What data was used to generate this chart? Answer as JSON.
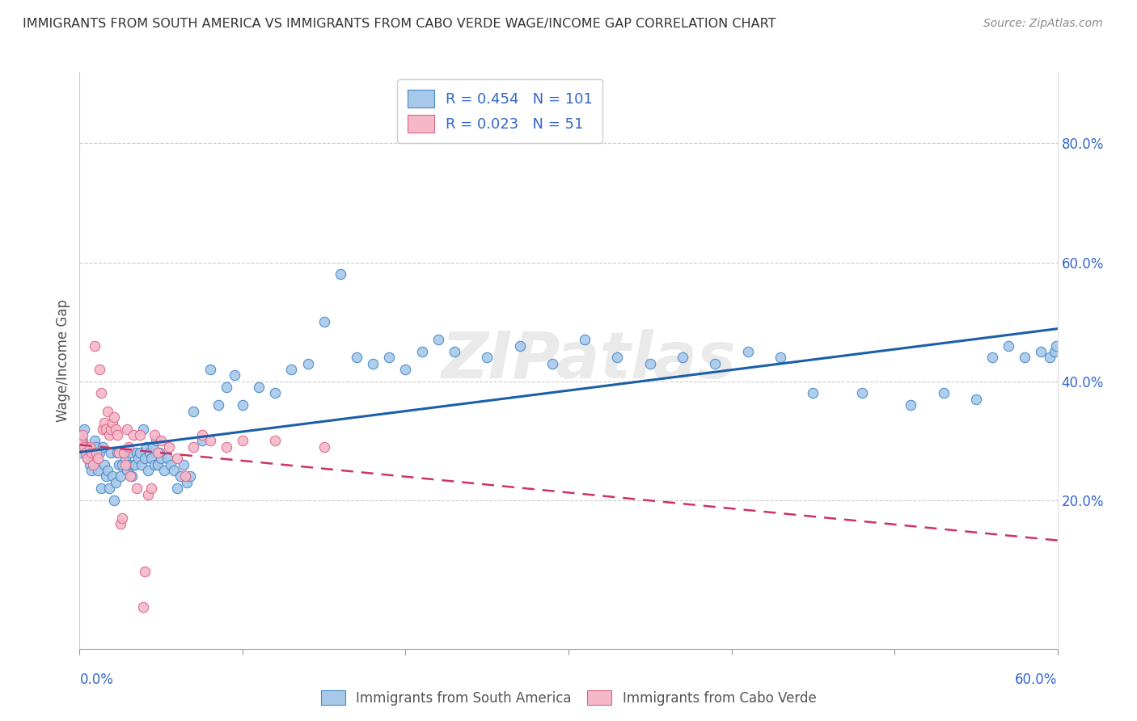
{
  "title": "IMMIGRANTS FROM SOUTH AMERICA VS IMMIGRANTS FROM CABO VERDE WAGE/INCOME GAP CORRELATION CHART",
  "source": "Source: ZipAtlas.com",
  "ylabel": "Wage/Income Gap",
  "right_yticks": [
    0.2,
    0.4,
    0.6,
    0.8
  ],
  "right_yticklabels": [
    "20.0%",
    "40.0%",
    "60.0%",
    "80.0%"
  ],
  "watermark": "ZIPatlas",
  "series1": {
    "label": "Immigrants from South America",
    "R": 0.454,
    "N": 101,
    "color": "#a8c8e8",
    "edge_color": "#4488cc",
    "line_color": "#1a5fa8",
    "x": [
      0.001,
      0.002,
      0.003,
      0.004,
      0.005,
      0.006,
      0.007,
      0.008,
      0.009,
      0.01,
      0.011,
      0.012,
      0.013,
      0.014,
      0.015,
      0.016,
      0.017,
      0.018,
      0.019,
      0.02,
      0.021,
      0.022,
      0.023,
      0.024,
      0.025,
      0.026,
      0.027,
      0.028,
      0.029,
      0.03,
      0.031,
      0.032,
      0.033,
      0.034,
      0.035,
      0.036,
      0.037,
      0.038,
      0.039,
      0.04,
      0.041,
      0.042,
      0.043,
      0.044,
      0.045,
      0.046,
      0.047,
      0.048,
      0.049,
      0.05,
      0.052,
      0.054,
      0.056,
      0.058,
      0.06,
      0.062,
      0.064,
      0.066,
      0.068,
      0.07,
      0.075,
      0.08,
      0.085,
      0.09,
      0.095,
      0.1,
      0.11,
      0.12,
      0.13,
      0.14,
      0.15,
      0.16,
      0.17,
      0.18,
      0.19,
      0.2,
      0.21,
      0.22,
      0.23,
      0.25,
      0.27,
      0.29,
      0.31,
      0.33,
      0.35,
      0.37,
      0.39,
      0.41,
      0.43,
      0.45,
      0.48,
      0.51,
      0.53,
      0.55,
      0.56,
      0.57,
      0.58,
      0.59,
      0.595,
      0.598,
      0.599
    ],
    "y": [
      0.28,
      0.3,
      0.32,
      0.29,
      0.27,
      0.26,
      0.25,
      0.28,
      0.3,
      0.29,
      0.25,
      0.28,
      0.22,
      0.29,
      0.26,
      0.24,
      0.25,
      0.22,
      0.28,
      0.24,
      0.2,
      0.23,
      0.28,
      0.26,
      0.24,
      0.26,
      0.28,
      0.27,
      0.25,
      0.26,
      0.28,
      0.24,
      0.26,
      0.26,
      0.28,
      0.27,
      0.28,
      0.26,
      0.32,
      0.27,
      0.29,
      0.25,
      0.28,
      0.27,
      0.29,
      0.26,
      0.3,
      0.26,
      0.28,
      0.27,
      0.25,
      0.27,
      0.26,
      0.25,
      0.22,
      0.24,
      0.26,
      0.23,
      0.24,
      0.35,
      0.3,
      0.42,
      0.36,
      0.39,
      0.41,
      0.36,
      0.39,
      0.38,
      0.42,
      0.43,
      0.5,
      0.58,
      0.44,
      0.43,
      0.44,
      0.42,
      0.45,
      0.47,
      0.45,
      0.44,
      0.46,
      0.43,
      0.47,
      0.44,
      0.43,
      0.44,
      0.43,
      0.45,
      0.44,
      0.38,
      0.38,
      0.36,
      0.38,
      0.37,
      0.44,
      0.46,
      0.44,
      0.45,
      0.44,
      0.45,
      0.46
    ]
  },
  "series2": {
    "label": "Immigrants from Cabo Verde",
    "R": 0.023,
    "N": 51,
    "color": "#f4b8c8",
    "edge_color": "#dd6688",
    "line_color": "#cc3366",
    "x": [
      0.001,
      0.002,
      0.003,
      0.004,
      0.005,
      0.006,
      0.007,
      0.008,
      0.009,
      0.01,
      0.011,
      0.012,
      0.013,
      0.014,
      0.015,
      0.016,
      0.017,
      0.018,
      0.019,
      0.02,
      0.021,
      0.022,
      0.023,
      0.024,
      0.025,
      0.026,
      0.027,
      0.028,
      0.029,
      0.03,
      0.031,
      0.033,
      0.035,
      0.037,
      0.039,
      0.04,
      0.042,
      0.044,
      0.046,
      0.048,
      0.05,
      0.055,
      0.06,
      0.065,
      0.07,
      0.075,
      0.08,
      0.09,
      0.1,
      0.12,
      0.15
    ],
    "y": [
      0.3,
      0.31,
      0.29,
      0.28,
      0.27,
      0.29,
      0.28,
      0.26,
      0.46,
      0.28,
      0.27,
      0.42,
      0.38,
      0.32,
      0.33,
      0.32,
      0.35,
      0.31,
      0.32,
      0.33,
      0.34,
      0.32,
      0.31,
      0.28,
      0.16,
      0.17,
      0.28,
      0.26,
      0.32,
      0.29,
      0.24,
      0.31,
      0.22,
      0.31,
      0.02,
      0.08,
      0.21,
      0.22,
      0.31,
      0.28,
      0.3,
      0.29,
      0.27,
      0.24,
      0.29,
      0.31,
      0.3,
      0.29,
      0.3,
      0.3,
      0.29
    ]
  },
  "xlim": [
    0.0,
    0.6
  ],
  "ylim": [
    -0.05,
    0.92
  ],
  "fig_width": 14.06,
  "fig_height": 8.92,
  "dpi": 100
}
